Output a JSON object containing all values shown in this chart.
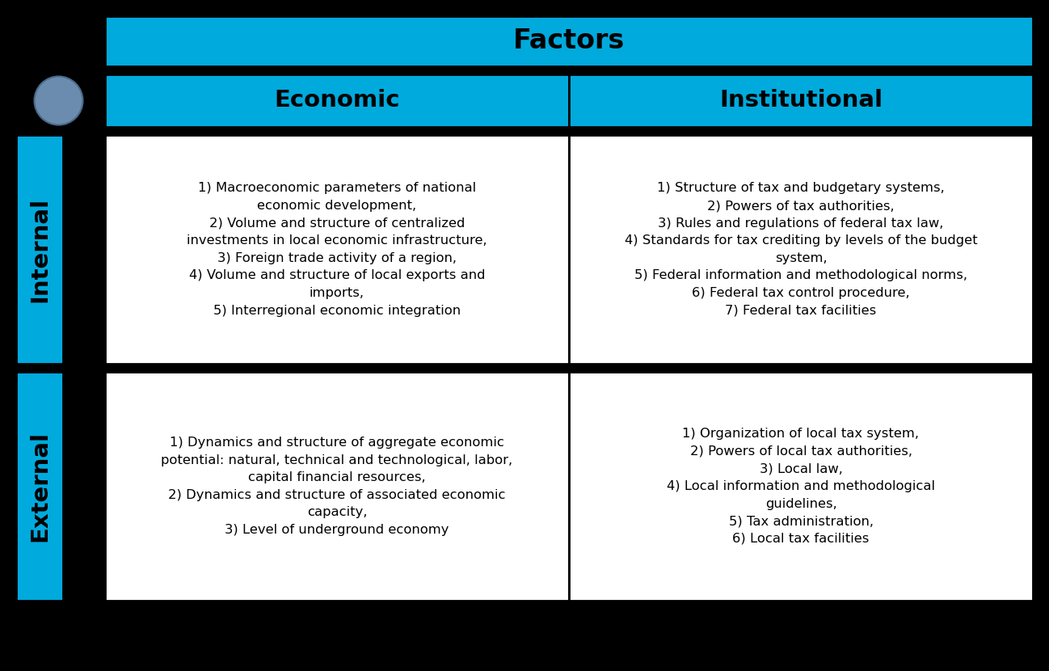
{
  "title": "Factors",
  "col_headers": [
    "Economic",
    "Institutional"
  ],
  "row_headers": [
    "Internal",
    "External"
  ],
  "cyan_color": "#00AADD",
  "black_color": "#000000",
  "white_color": "#FFFFFF",
  "circle_color": "#6B8CAE",
  "title_fontsize": 24,
  "header_fontsize": 21,
  "row_label_fontsize": 21,
  "cell_fontsize": 11.8,
  "internal_economic_text": "1) Macroeconomic parameters of national\neconomic development,\n2) Volume and structure of centralized\ninvestments in local economic infrastructure,\n3) Foreign trade activity of a region,\n4) Volume and structure of local exports and\nimports,\n5) Interregional economic integration",
  "internal_institutional_text": "1) Structure of tax and budgetary systems,\n2) Powers of tax authorities,\n3) Rules and regulations of federal tax law,\n4) Standards for tax crediting by levels of the budget\nsystem,\n5) Federal information and methodological norms,\n6) Federal tax control procedure,\n7) Federal tax facilities",
  "external_economic_text": "1) Dynamics and structure of aggregate economic\npotential: natural, technical and technological, labor,\ncapital financial resources,\n2) Dynamics and structure of associated economic\ncapacity,\n3) Level of underground economy",
  "external_institutional_text": "1) Organization of local tax system,\n2) Powers of local tax authorities,\n3) Local law,\n4) Local information and methodological\nguidelines,\n5) Tax administration,\n6) Local tax facilities",
  "fig_w": 12.98,
  "fig_h": 8.3,
  "dpi": 100
}
